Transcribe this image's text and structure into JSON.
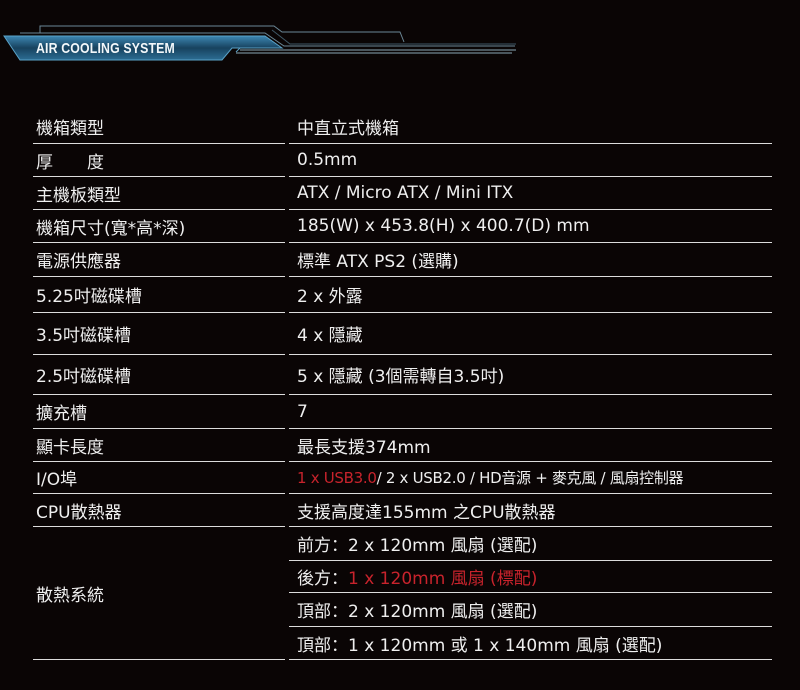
{
  "banner": {
    "title": "AIR COOLING SYSTEM",
    "accent_color": "#2b6f95"
  },
  "colors": {
    "highlight": "#c8232c",
    "text": "#efefef",
    "background": "#0a0505"
  },
  "specs": [
    {
      "label": "機箱類型",
      "value": "中直立式機箱"
    },
    {
      "label": "厚　　度",
      "value": "0.5mm"
    },
    {
      "label": "主機板類型",
      "value": "ATX / Micro ATX / Mini ITX"
    },
    {
      "label": "機箱尺寸(寬*高*深)",
      "value": "185(W) x 453.8(H) x 400.7(D) mm"
    },
    {
      "label": "電源供應器",
      "value": "標準 ATX PS2 (選購)"
    },
    {
      "label": "5.25吋磁碟槽",
      "value": "2 x 外露"
    },
    {
      "label": "3.5吋磁碟槽",
      "value": "4 x 隱藏"
    },
    {
      "label": "2.5吋磁碟槽",
      "value": "5 x 隱藏 (3個需轉自3.5吋)"
    },
    {
      "label": "擴充槽",
      "value": "7"
    },
    {
      "label": "顯卡長度",
      "value": "最長支援374mm"
    },
    {
      "label": "I/O埠",
      "value_highlight": "1 x USB3.0",
      "value": " / 2 x USB2.0 / HD音源 + 麥克風 / 風扇控制器"
    },
    {
      "label": "CPU散熱器",
      "value": "支援高度達155mm 之CPU散熱器"
    }
  ],
  "cooling": {
    "label": "散熱系統",
    "items": [
      {
        "prefix": "前方：",
        "value": "2 x 120mm 風扇 (選配)",
        "highlight": false
      },
      {
        "prefix": "後方：",
        "value": "1 x 120mm 風扇 (標配)",
        "highlight": true
      },
      {
        "prefix": "頂部：",
        "value": "2 x 120mm 風扇 (選配)",
        "highlight": false
      },
      {
        "prefix": "頂部：",
        "value": "1 x 120mm 或 1 x 140mm 風扇 (選配)",
        "highlight": false
      }
    ]
  }
}
